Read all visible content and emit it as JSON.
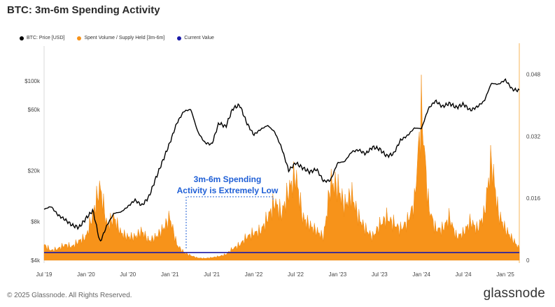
{
  "header": {
    "title": "BTC: 3m-6m Spending Activity"
  },
  "legend": [
    {
      "label": "BTC: Price [USD]",
      "color": "#000000"
    },
    {
      "label": "Spent Volume / Supply Held [3m-6m]",
      "color": "#f7931a"
    },
    {
      "label": "Current Value",
      "color": "#1a1aa8"
    }
  ],
  "annotation": {
    "line1": "3m-6m Spending",
    "line2": "Activity is Extremely Low"
  },
  "footer": {
    "copyright": "© 2025 Glassnode. All Rights Reserved.",
    "brand": "glassnode"
  },
  "chart_data": {
    "type": "line+area",
    "x_ticks": [
      "Jul '19",
      "Jan '20",
      "Jul '20",
      "Jan '21",
      "Jul '21",
      "Jan '22",
      "Jul '22",
      "Jan '23",
      "Jul '23",
      "Jan '24",
      "Jul '24",
      "Jan '25"
    ],
    "y_left_ticks": [
      {
        "label": "$100k",
        "value": 100000
      },
      {
        "label": "$60k",
        "value": 60000
      },
      {
        "label": "$20k",
        "value": 20000
      },
      {
        "label": "$8k",
        "value": 8000
      },
      {
        "label": "$4k",
        "value": 4000
      }
    ],
    "y_left_scale": "log",
    "y_right_ticks": [
      "0.048",
      "0.032",
      "0.016",
      "0"
    ],
    "ylim_right": [
      0,
      0.056
    ],
    "current_value": 0.002,
    "price_series": [
      [
        "2019-07",
        10000
      ],
      [
        "2019-08",
        10500
      ],
      [
        "2019-09",
        9000
      ],
      [
        "2019-10",
        8300
      ],
      [
        "2019-11",
        7500
      ],
      [
        "2019-12",
        7200
      ],
      [
        "2020-01",
        8500
      ],
      [
        "2020-02",
        9800
      ],
      [
        "2020-03",
        5500
      ],
      [
        "2020-04",
        7500
      ],
      [
        "2020-05",
        9300
      ],
      [
        "2020-06",
        9500
      ],
      [
        "2020-07",
        10500
      ],
      [
        "2020-08",
        11800
      ],
      [
        "2020-09",
        10700
      ],
      [
        "2020-10",
        12500
      ],
      [
        "2020-11",
        17500
      ],
      [
        "2020-12",
        24000
      ],
      [
        "2021-01",
        33000
      ],
      [
        "2021-02",
        47000
      ],
      [
        "2021-03",
        58000
      ],
      [
        "2021-04",
        60000
      ],
      [
        "2021-05",
        40000
      ],
      [
        "2021-06",
        33000
      ],
      [
        "2021-07",
        32000
      ],
      [
        "2021-08",
        47000
      ],
      [
        "2021-09",
        44000
      ],
      [
        "2021-10",
        61000
      ],
      [
        "2021-11",
        65000
      ],
      [
        "2021-12",
        47000
      ],
      [
        "2022-01",
        38000
      ],
      [
        "2022-02",
        42000
      ],
      [
        "2022-03",
        45000
      ],
      [
        "2022-04",
        40000
      ],
      [
        "2022-05",
        30000
      ],
      [
        "2022-06",
        20000
      ],
      [
        "2022-07",
        23000
      ],
      [
        "2022-08",
        21000
      ],
      [
        "2022-09",
        19500
      ],
      [
        "2022-10",
        20500
      ],
      [
        "2022-11",
        16500
      ],
      [
        "2022-12",
        16800
      ],
      [
        "2023-01",
        23000
      ],
      [
        "2023-02",
        23500
      ],
      [
        "2023-03",
        28000
      ],
      [
        "2023-04",
        29000
      ],
      [
        "2023-05",
        27000
      ],
      [
        "2023-06",
        30500
      ],
      [
        "2023-07",
        29500
      ],
      [
        "2023-08",
        26000
      ],
      [
        "2023-09",
        27000
      ],
      [
        "2023-10",
        34500
      ],
      [
        "2023-11",
        37500
      ],
      [
        "2023-12",
        43000
      ],
      [
        "2024-01",
        42500
      ],
      [
        "2024-02",
        61000
      ],
      [
        "2024-03",
        70000
      ],
      [
        "2024-04",
        63000
      ],
      [
        "2024-05",
        67000
      ],
      [
        "2024-06",
        62000
      ],
      [
        "2024-07",
        66000
      ],
      [
        "2024-08",
        59000
      ],
      [
        "2024-09",
        63000
      ],
      [
        "2024-10",
        70000
      ],
      [
        "2024-11",
        96000
      ],
      [
        "2024-12",
        94000
      ],
      [
        "2025-01",
        102000
      ],
      [
        "2025-02",
        86000
      ],
      [
        "2025-03",
        84000
      ]
    ],
    "spending_series": [
      [
        "2019-07",
        0.004
      ],
      [
        "2019-08",
        0.0025
      ],
      [
        "2019-09",
        0.003
      ],
      [
        "2019-10",
        0.004
      ],
      [
        "2019-11",
        0.0035
      ],
      [
        "2019-12",
        0.005
      ],
      [
        "2020-01",
        0.006
      ],
      [
        "2020-02",
        0.012
      ],
      [
        "2020-03",
        0.019
      ],
      [
        "2020-04",
        0.009
      ],
      [
        "2020-05",
        0.011
      ],
      [
        "2020-06",
        0.007
      ],
      [
        "2020-07",
        0.006
      ],
      [
        "2020-08",
        0.006
      ],
      [
        "2020-09",
        0.0075
      ],
      [
        "2020-10",
        0.005
      ],
      [
        "2020-11",
        0.006
      ],
      [
        "2020-12",
        0.008
      ],
      [
        "2021-01",
        0.011
      ],
      [
        "2021-02",
        0.004
      ],
      [
        "2021-03",
        0.002
      ],
      [
        "2021-04",
        0.0012
      ],
      [
        "2021-05",
        0.0006
      ],
      [
        "2021-06",
        0.0005
      ],
      [
        "2021-07",
        0.0007
      ],
      [
        "2021-08",
        0.001
      ],
      [
        "2021-09",
        0.0015
      ],
      [
        "2021-10",
        0.003
      ],
      [
        "2021-11",
        0.004
      ],
      [
        "2021-12",
        0.006
      ],
      [
        "2022-01",
        0.007
      ],
      [
        "2022-02",
        0.0075
      ],
      [
        "2022-03",
        0.011
      ],
      [
        "2022-04",
        0.015
      ],
      [
        "2022-05",
        0.012
      ],
      [
        "2022-06",
        0.018
      ],
      [
        "2022-07",
        0.022
      ],
      [
        "2022-08",
        0.011
      ],
      [
        "2022-09",
        0.009
      ],
      [
        "2022-10",
        0.0075
      ],
      [
        "2022-11",
        0.006
      ],
      [
        "2022-12",
        0.02
      ],
      [
        "2023-01",
        0.019
      ],
      [
        "2023-02",
        0.014
      ],
      [
        "2023-03",
        0.017
      ],
      [
        "2023-04",
        0.011
      ],
      [
        "2023-05",
        0.008
      ],
      [
        "2023-06",
        0.006
      ],
      [
        "2023-07",
        0.009
      ],
      [
        "2023-08",
        0.011
      ],
      [
        "2023-09",
        0.0095
      ],
      [
        "2023-10",
        0.008
      ],
      [
        "2023-11",
        0.01
      ],
      [
        "2023-12",
        0.015
      ],
      [
        "2024-01",
        0.039
      ],
      [
        "2024-02",
        0.014
      ],
      [
        "2024-03",
        0.008
      ],
      [
        "2024-04",
        0.008
      ],
      [
        "2024-05",
        0.011
      ],
      [
        "2024-06",
        0.006
      ],
      [
        "2024-07",
        0.007
      ],
      [
        "2024-08",
        0.01
      ],
      [
        "2024-09",
        0.008
      ],
      [
        "2024-10",
        0.012
      ],
      [
        "2024-11",
        0.026
      ],
      [
        "2024-12",
        0.012
      ],
      [
        "2025-01",
        0.008
      ],
      [
        "2025-02",
        0.0055
      ],
      [
        "2025-03",
        0.003
      ]
    ]
  }
}
